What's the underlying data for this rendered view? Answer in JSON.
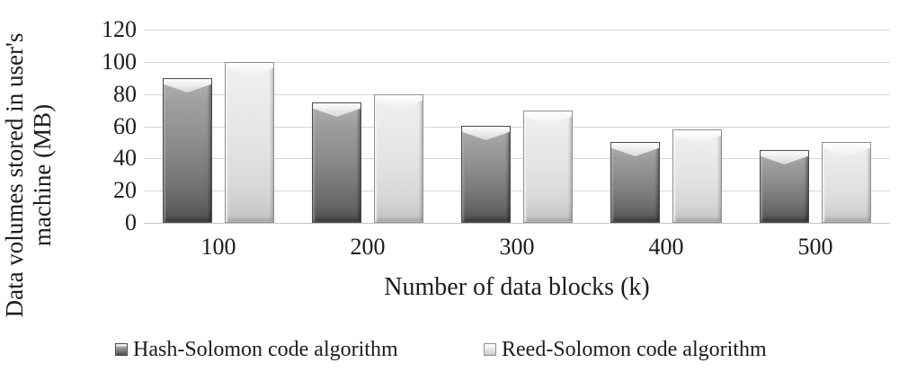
{
  "chart_data": {
    "type": "bar",
    "title": "",
    "xlabel": "Number of data blocks (k)",
    "ylabel": "Data volumes stored in user's machine (MB)",
    "ylabel_lines": [
      "Data volumes stored in user's",
      "machine (MB)"
    ],
    "categories": [
      "100",
      "200",
      "300",
      "400",
      "500"
    ],
    "series": [
      {
        "name": "Hash-Solomon code algorithm",
        "key": "hash",
        "values": [
          90,
          75,
          60,
          50,
          45
        ],
        "color": "#7f7f7f"
      },
      {
        "name": "Reed-Solomon code algorithm",
        "key": "reed",
        "values": [
          100,
          80,
          70,
          58,
          50
        ],
        "color": "#e2e2e2"
      }
    ],
    "ylim": [
      0,
      120
    ],
    "yticks": [
      0,
      20,
      40,
      60,
      80,
      100,
      120
    ],
    "grid": "horizontal",
    "legend_position": "bottom",
    "colors": {
      "gridline": "#d6d6d6",
      "axis_line": "#c3c3c3",
      "text": "#1c1c1c",
      "background": "#ffffff"
    }
  }
}
